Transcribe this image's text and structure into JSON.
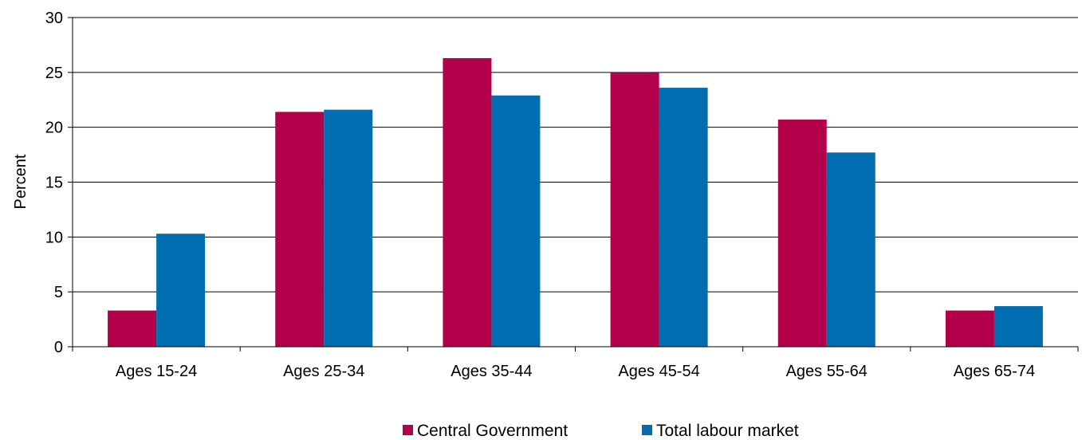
{
  "chart_data": {
    "type": "bar",
    "title": "",
    "xlabel": "",
    "ylabel": "Percent",
    "ylim": [
      0,
      30
    ],
    "yticks": [
      0,
      5,
      10,
      15,
      20,
      25,
      30
    ],
    "categories": [
      "Ages 15-24",
      "Ages 25-34",
      "Ages 35-44",
      "Ages 45-54",
      "Ages 55-64",
      "Ages 65-74"
    ],
    "series": [
      {
        "name": "Central Government",
        "color": "#b4004b",
        "values": [
          3.3,
          21.4,
          26.3,
          25.0,
          20.7,
          3.3
        ]
      },
      {
        "name": "Total labour market",
        "color": "#006eb0",
        "values": [
          10.3,
          21.6,
          22.9,
          23.6,
          17.7,
          3.7
        ]
      }
    ],
    "grid": {
      "horizontal": true,
      "color": "#000000"
    },
    "legend": {
      "position": "bottom-center"
    }
  }
}
